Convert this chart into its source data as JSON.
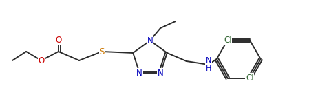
{
  "background": "#ffffff",
  "bond_color": "#2b2b2b",
  "atom_colors": {
    "N": "#0000bb",
    "O": "#cc0000",
    "S": "#cc7700",
    "Cl": "#336633",
    "C": "#2b2b2b"
  },
  "figsize": [
    4.78,
    1.47
  ],
  "dpi": 100,
  "lw": 1.4,
  "fs": 8.5
}
